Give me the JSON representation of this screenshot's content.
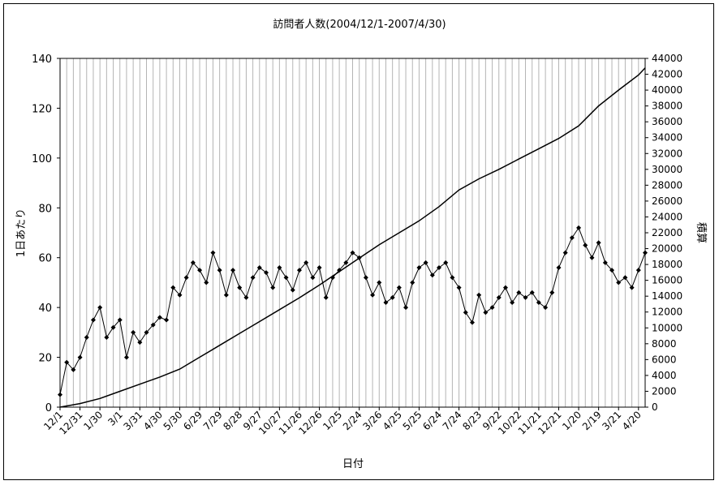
{
  "chart_data": {
    "type": "line",
    "title": "訪問者人数(2004/12/1-2007/4/30)",
    "xlabel": "日付",
    "ylabel": "1日あたり",
    "y2label": "積算",
    "ylim": [
      0,
      140
    ],
    "y2lim": [
      0,
      44000
    ],
    "yticks": [
      0,
      20,
      40,
      60,
      80,
      100,
      120,
      140
    ],
    "y2ticks": [
      0,
      2000,
      4000,
      6000,
      8000,
      10000,
      12000,
      14000,
      16000,
      18000,
      20000,
      22000,
      24000,
      26000,
      28000,
      30000,
      32000,
      34000,
      36000,
      38000,
      40000,
      42000,
      44000
    ],
    "x_range": [
      "2004-12-01",
      "2007-04-30"
    ],
    "xtick_labels": [
      "12/1",
      "12/31",
      "1/30",
      "3/1",
      "3/31",
      "4/30",
      "5/30",
      "6/29",
      "7/29",
      "8/28",
      "9/27",
      "10/27",
      "11/26",
      "12/26",
      "1/25",
      "2/24",
      "3/26",
      "4/25",
      "5/25",
      "6/24",
      "7/24",
      "8/23",
      "9/22",
      "10/22",
      "11/21",
      "12/21",
      "1/20",
      "2/19",
      "3/21",
      "4/20"
    ],
    "grid": "vertical",
    "legend": "none",
    "series": [
      {
        "axis": "left",
        "marker": "diamond",
        "note_values": "daily visitors, sampled every 10 days",
        "x": [
          "2004-12-01",
          "2004-12-11",
          "2004-12-21",
          "2004-12-31",
          "2005-01-10",
          "2005-01-20",
          "2005-01-30",
          "2005-02-09",
          "2005-02-19",
          "2005-03-01",
          "2005-03-11",
          "2005-03-21",
          "2005-03-31",
          "2005-04-10",
          "2005-04-20",
          "2005-04-30",
          "2005-05-10",
          "2005-05-20",
          "2005-05-30",
          "2005-06-09",
          "2005-06-19",
          "2005-06-29",
          "2005-07-09",
          "2005-07-19",
          "2005-07-29",
          "2005-08-08",
          "2005-08-18",
          "2005-08-28",
          "2005-09-07",
          "2005-09-17",
          "2005-09-27",
          "2005-10-07",
          "2005-10-17",
          "2005-10-27",
          "2005-11-06",
          "2005-11-16",
          "2005-11-26",
          "2005-12-06",
          "2005-12-16",
          "2005-12-26",
          "2006-01-05",
          "2006-01-15",
          "2006-01-25",
          "2006-02-04",
          "2006-02-14",
          "2006-02-24",
          "2006-03-06",
          "2006-03-16",
          "2006-03-26",
          "2006-04-05",
          "2006-04-15",
          "2006-04-25",
          "2006-05-05",
          "2006-05-15",
          "2006-05-25",
          "2006-06-04",
          "2006-06-14",
          "2006-06-24",
          "2006-07-04",
          "2006-07-14",
          "2006-07-24",
          "2006-08-03",
          "2006-08-13",
          "2006-08-23",
          "2006-09-02",
          "2006-09-12",
          "2006-09-22",
          "2006-10-02",
          "2006-10-12",
          "2006-10-22",
          "2006-11-01",
          "2006-11-11",
          "2006-11-21",
          "2006-12-01",
          "2006-12-11",
          "2006-12-21",
          "2006-12-31",
          "2007-01-10",
          "2007-01-20",
          "2007-01-30",
          "2007-02-09",
          "2007-02-19",
          "2007-03-01",
          "2007-03-11",
          "2007-03-21",
          "2007-03-31",
          "2007-04-10",
          "2007-04-20",
          "2007-04-30"
        ],
        "values": [
          5,
          18,
          15,
          20,
          28,
          35,
          40,
          28,
          32,
          35,
          20,
          30,
          26,
          30,
          33,
          36,
          35,
          48,
          45,
          52,
          58,
          55,
          50,
          62,
          55,
          45,
          55,
          48,
          44,
          52,
          56,
          54,
          48,
          56,
          52,
          47,
          55,
          58,
          52,
          56,
          44,
          52,
          55,
          58,
          62,
          60,
          52,
          45,
          50,
          42,
          44,
          48,
          40,
          50,
          56,
          58,
          53,
          56,
          58,
          52,
          48,
          38,
          34,
          45,
          38,
          40,
          44,
          48,
          42,
          46,
          44,
          46,
          42,
          40,
          46,
          56,
          62,
          68,
          72,
          65,
          60,
          66,
          58,
          55,
          50,
          52,
          48,
          55,
          62
        ]
      },
      {
        "axis": "right",
        "marker": "none",
        "note_values": "cumulative visitors",
        "x": [
          "2004-12-01",
          "2004-12-31",
          "2005-01-30",
          "2005-03-01",
          "2005-03-31",
          "2005-04-30",
          "2005-05-30",
          "2005-06-29",
          "2005-07-29",
          "2005-08-28",
          "2005-09-27",
          "2005-10-27",
          "2005-11-26",
          "2005-12-26",
          "2006-01-25",
          "2006-02-24",
          "2006-03-26",
          "2006-04-25",
          "2006-05-25",
          "2006-06-24",
          "2006-07-24",
          "2006-08-23",
          "2006-09-22",
          "2006-10-22",
          "2006-11-21",
          "2006-12-21",
          "2007-01-20",
          "2007-02-19",
          "2007-03-21",
          "2007-04-20",
          "2007-04-30"
        ],
        "values": [
          0,
          450,
          1100,
          2000,
          2900,
          3800,
          4800,
          6300,
          7800,
          9300,
          10800,
          12300,
          13800,
          15400,
          17100,
          18800,
          20500,
          22000,
          23500,
          25300,
          27400,
          28800,
          30000,
          31300,
          32600,
          33900,
          35500,
          38000,
          40000,
          41900,
          42800
        ]
      }
    ]
  }
}
